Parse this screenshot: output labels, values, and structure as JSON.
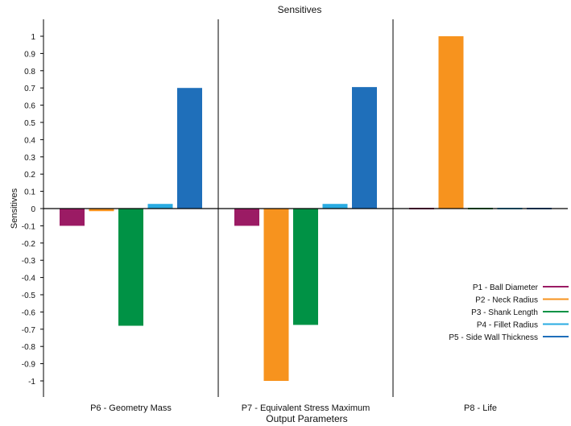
{
  "chart_data": {
    "type": "bar",
    "title": "Sensitives",
    "xlabel": "Output Parameters",
    "ylabel": "Sensitives",
    "ylim": [
      -1.1,
      1.1
    ],
    "yticks": [
      {
        "v": 1,
        "label": "1"
      },
      {
        "v": 0.9,
        "label": "0.9"
      },
      {
        "v": 0.8,
        "label": "0.8"
      },
      {
        "v": 0.7,
        "label": "0.7"
      },
      {
        "v": 0.6,
        "label": "0.6"
      },
      {
        "v": 0.5,
        "label": "0.5"
      },
      {
        "v": 0.4,
        "label": "0.4"
      },
      {
        "v": 0.3,
        "label": "0.3"
      },
      {
        "v": 0.2,
        "label": "0.2"
      },
      {
        "v": 0.1,
        "label": "0.1"
      },
      {
        "v": 0,
        "label": "0"
      },
      {
        "v": -0.1,
        "label": "-0.1"
      },
      {
        "v": -0.2,
        "label": "-0.2"
      },
      {
        "v": -0.3,
        "label": "-0.3"
      },
      {
        "v": -0.4,
        "label": "-0.4"
      },
      {
        "v": -0.5,
        "label": "-0.5"
      },
      {
        "v": -0.6,
        "label": "-0.6"
      },
      {
        "v": -0.7,
        "label": "-0.7"
      },
      {
        "v": -0.8,
        "label": "-0.8"
      },
      {
        "v": -0.9,
        "label": "-0.9"
      },
      {
        "v": -1,
        "label": "-1"
      }
    ],
    "categories": [
      "P6 - Geometry Mass",
      "P7 - Equivalent Stress Maximum",
      "P8 - Life"
    ],
    "series": [
      {
        "name": "P1 - Ball Diameter",
        "color": "#9b1b64",
        "values": [
          -0.1,
          -0.1,
          0.005
        ]
      },
      {
        "name": "P2 - Neck Radius",
        "color": "#f7931e",
        "values": [
          -0.015,
          -1.0,
          1.0
        ]
      },
      {
        "name": "P3 - Shank Length",
        "color": "#009245",
        "values": [
          -0.68,
          -0.675,
          0.006
        ]
      },
      {
        "name": "P4 - Fillet Radius",
        "color": "#29abe2",
        "values": [
          0.027,
          0.027,
          0.005
        ]
      },
      {
        "name": "P5 - Side Wall Thickness",
        "color": "#1f6fba",
        "values": [
          0.7,
          0.705,
          0.005
        ]
      }
    ],
    "grid": false,
    "legend_position": "bottom-right"
  }
}
